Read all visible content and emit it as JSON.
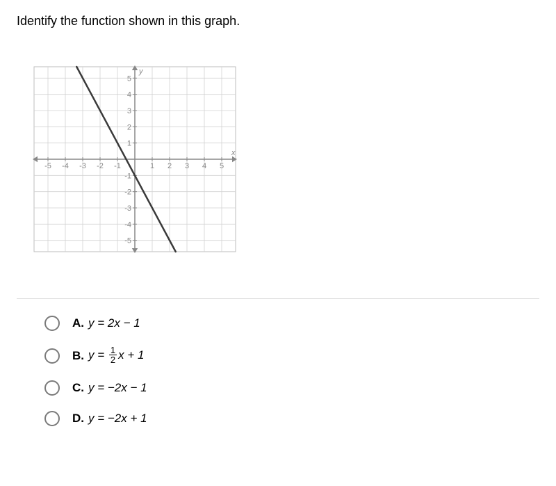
{
  "question": "Identify the function shown in this graph.",
  "graph": {
    "type": "line",
    "xlim": [
      -6,
      6
    ],
    "ylim": [
      -6,
      6
    ],
    "xticks": {
      "from": -5,
      "to": 5,
      "step": 1,
      "labels": [
        "-5",
        "-4",
        "-3",
        "-2",
        "-1",
        "",
        "1",
        "2",
        "3",
        "4",
        "5"
      ]
    },
    "yticks": {
      "from": -5,
      "to": 5,
      "step": 1,
      "labels": [
        "-5",
        "-4",
        "-3",
        "-2",
        "-1",
        "",
        "1",
        "2",
        "3",
        "4",
        "5"
      ]
    },
    "grid_color": "#d2d2d2",
    "axis_color": "#888888",
    "border_color": "#bdbdbd",
    "background_color": "#ffffff",
    "tick_font_size": 11,
    "tick_font_color": "#888888",
    "axis_label_x": "x",
    "axis_label_y": "y",
    "axis_label_font_size": 11,
    "axis_label_color": "#888888",
    "line": {
      "slope": -2,
      "intercept": -1,
      "points": [
        [
          -3.25,
          5.5
        ],
        [
          3.25,
          -7.5
        ]
      ],
      "draw_points": [
        [
          -3.25,
          5.5
        ],
        [
          3,
          -7
        ]
      ],
      "color": "#3a3a3a",
      "width": 2.5
    },
    "arrow_size": 7
  },
  "options": [
    {
      "letter": "A.",
      "equation_html": "<span class='math-var'>y</span> = 2<span class='math-var'>x</span> − 1"
    },
    {
      "letter": "B.",
      "equation_html": "<span class='math-var'>y</span> = <span class='frac'><span class='num'>1</span><span class='den'>2</span></span><span class='math-var'>x</span> + 1"
    },
    {
      "letter": "C.",
      "equation_html": "<span class='math-var'>y</span> = −2<span class='math-var'>x</span> − 1"
    },
    {
      "letter": "D.",
      "equation_html": "<span class='math-var'>y</span> = −2<span class='math-var'>x</span> + 1"
    }
  ],
  "colors": {
    "text": "#000000",
    "radio_border": "#7a7a7a",
    "divider": "#e0e0e0"
  }
}
